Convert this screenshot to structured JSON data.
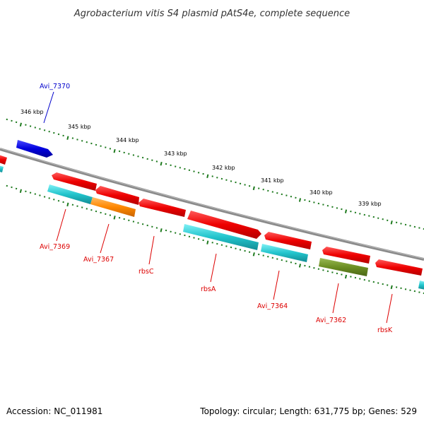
{
  "title": "Agrobacterium vitis S4 plasmid pAtS4e, complete sequence",
  "footer": {
    "accession": "Accession: NC_011981",
    "summary": "Topology: circular; Length: 631,775 bp; Genes: 529"
  },
  "colors": {
    "backbone": "#8a8a8a",
    "tick": "#1e7a1e",
    "label_red": "#dd0000",
    "label_blue": "#0000cc",
    "gene_red": "#ee0000",
    "gene_blue": "#0000dd",
    "gene_cyan": "#22c4cc",
    "gene_orange": "#ff8800",
    "gene_olive": "#6b8e23"
  },
  "scale_labels": [
    "346 kbp",
    "345 kbp",
    "344 kbp",
    "343 kbp",
    "342 kbp",
    "341 kbp",
    "340 kbp",
    "339 kbp"
  ],
  "gene_labels": [
    {
      "text": "Avi_7370",
      "color": "blue"
    },
    {
      "text": "Avi_7369",
      "color": "red"
    },
    {
      "text": "Avi_7367",
      "color": "red"
    },
    {
      "text": "rbsC",
      "color": "red"
    },
    {
      "text": "rbsA",
      "color": "red"
    },
    {
      "text": "Avi_7364",
      "color": "red"
    },
    {
      "text": "Avi_7362",
      "color": "red"
    },
    {
      "text": "rbsK",
      "color": "red"
    }
  ]
}
